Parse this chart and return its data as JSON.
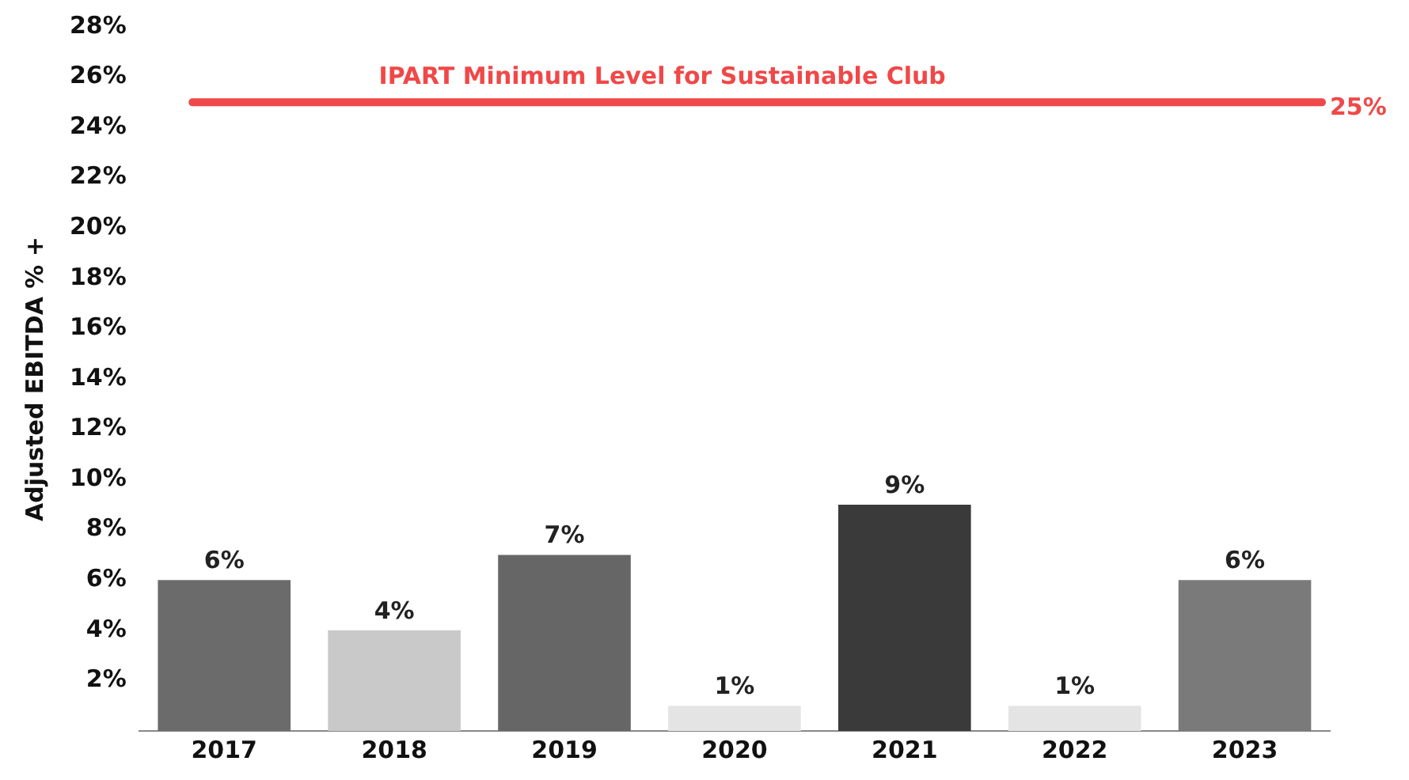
{
  "chart_data": {
    "type": "bar",
    "ylabel": "Adjusted EBITDA % +",
    "categories": [
      "2017",
      "2018",
      "2019",
      "2020",
      "2021",
      "2022",
      "2023"
    ],
    "values": [
      6,
      4,
      7,
      1,
      9,
      1,
      6
    ],
    "value_labels": [
      "6%",
      "4%",
      "7%",
      "1%",
      "9%",
      "1%",
      "6%"
    ],
    "colors": [
      "#6b6b6b",
      "#c9c9c9",
      "#666666",
      "#e4e4e4",
      "#3a3a3a",
      "#e4e4e4",
      "#7a7a7a"
    ],
    "ylim": [
      0,
      28
    ],
    "yticks": [
      {
        "value": 2,
        "label": "2%"
      },
      {
        "value": 4,
        "label": "4%"
      },
      {
        "value": 6,
        "label": "6%"
      },
      {
        "value": 8,
        "label": "8%"
      },
      {
        "value": 10,
        "label": "10%"
      },
      {
        "value": 12,
        "label": "12%"
      },
      {
        "value": 14,
        "label": "14%"
      },
      {
        "value": 16,
        "label": "16%"
      },
      {
        "value": 18,
        "label": "18%"
      },
      {
        "value": 20,
        "label": "20%"
      },
      {
        "value": 22,
        "label": "22%"
      },
      {
        "value": 24,
        "label": "24%"
      },
      {
        "value": 26,
        "label": "26%"
      },
      {
        "value": 28,
        "label": "28%"
      }
    ],
    "ref_lines": [
      {
        "axis": "y",
        "value": 25,
        "label": "25%",
        "color": "#f04848"
      }
    ],
    "annotations": [
      "IPART Minimum Level for Sustainable Club"
    ],
    "grid": false,
    "legend": false
  }
}
